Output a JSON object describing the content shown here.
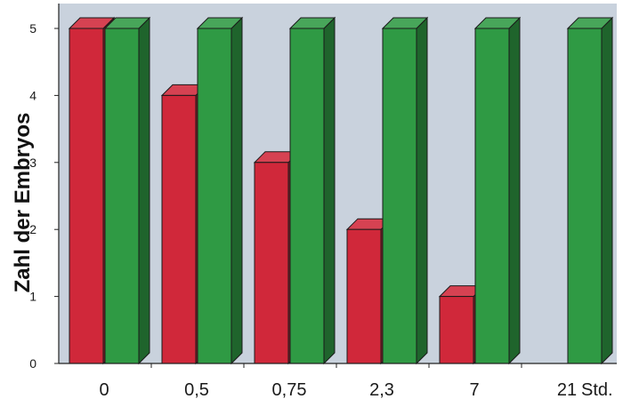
{
  "chart_data": {
    "type": "bar",
    "style": "3d-clustered",
    "categories": [
      "0",
      "0,5",
      "0,75",
      "2,3",
      "7",
      "21"
    ],
    "series": [
      {
        "values": [
          5,
          4,
          3,
          2,
          1,
          0
        ],
        "color": "#d0283a"
      },
      {
        "values": [
          5,
          5,
          5,
          5,
          5,
          5
        ],
        "color": "#2f9a44"
      }
    ],
    "xlabel": "Std.",
    "ylabel": "Zahl der Embryos",
    "ylim": [
      0,
      5
    ],
    "yticks": [
      "0",
      "1",
      "2",
      "3",
      "4",
      "5"
    ],
    "grid": false,
    "background_color": "#c9d2dd"
  }
}
